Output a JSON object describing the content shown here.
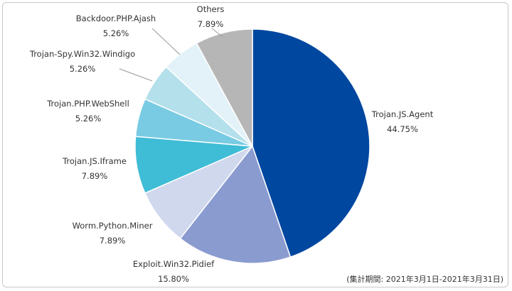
{
  "chart_data": {
    "type": "pie",
    "note": "(集計期間: 2021年3月1日-2021年3月31日)",
    "slices": [
      {
        "label": "Trojan.JS.Agent",
        "value": 44.75,
        "value_text": "44.75%",
        "color": "#0047a0"
      },
      {
        "label": "Exploit.Win32.Pidief",
        "value": 15.8,
        "value_text": "15.80%",
        "color": "#8a9bd0"
      },
      {
        "label": "Worm.Python.Miner",
        "value": 7.89,
        "value_text": "7.89%",
        "color": "#d0d8ee"
      },
      {
        "label": "Trojan.JS.Iframe",
        "value": 7.89,
        "value_text": "7.89%",
        "color": "#3fbcd6"
      },
      {
        "label": "Trojan.PHP.WebShell",
        "value": 5.26,
        "value_text": "5.26%",
        "color": "#78cbe2"
      },
      {
        "label": "Trojan-Spy.Win32.Windigo",
        "value": 5.26,
        "value_text": "5.26%",
        "color": "#b4e0ec"
      },
      {
        "label": "Backdoor.PHP.Ajash",
        "value": 5.26,
        "value_text": "5.26%",
        "color": "#e2f2f8"
      },
      {
        "label": "Others",
        "value": 7.89,
        "value_text": "7.89%",
        "color": "#b6b6b6"
      }
    ]
  }
}
